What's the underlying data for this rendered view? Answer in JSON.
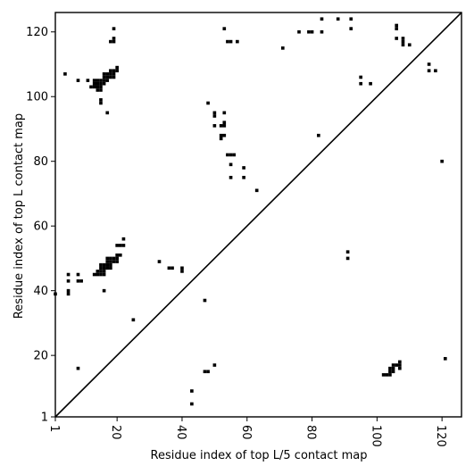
{
  "chart_data": {
    "type": "heatmap",
    "title": "",
    "xlabel": "Residue index of top L/5 contact map",
    "ylabel": "Residue index of top L contact map",
    "xlim": [
      1,
      126
    ],
    "ylim": [
      1,
      126
    ],
    "x_ticks": [
      1,
      20,
      40,
      60,
      80,
      100,
      120
    ],
    "y_ticks": [
      1,
      20,
      40,
      60,
      80,
      100,
      120
    ],
    "x_tick_labels": [
      "1",
      "20",
      "40",
      "60",
      "80",
      "100",
      "120"
    ],
    "y_tick_labels": [
      "1",
      "20",
      "40",
      "60",
      "80",
      "100",
      "120"
    ],
    "x_tick_rotation": 90,
    "diagonal_line": true,
    "cell_color": "#000000",
    "contacts_top_L": [
      [
        1,
        39
      ],
      [
        5,
        40
      ],
      [
        5,
        39
      ],
      [
        5,
        43
      ],
      [
        5,
        45
      ],
      [
        8,
        45
      ],
      [
        8,
        43
      ],
      [
        9,
        43
      ],
      [
        8,
        16
      ],
      [
        13,
        45
      ],
      [
        14,
        45
      ],
      [
        15,
        45
      ],
      [
        16,
        45
      ],
      [
        14,
        46
      ],
      [
        15,
        46
      ],
      [
        16,
        46
      ],
      [
        15,
        47
      ],
      [
        16,
        47
      ],
      [
        15,
        48
      ],
      [
        16,
        48
      ],
      [
        17,
        47
      ],
      [
        18,
        47
      ],
      [
        17,
        48
      ],
      [
        18,
        48
      ],
      [
        17,
        49
      ],
      [
        18,
        49
      ],
      [
        19,
        49
      ],
      [
        20,
        49
      ],
      [
        17,
        50
      ],
      [
        18,
        50
      ],
      [
        19,
        50
      ],
      [
        20,
        50
      ],
      [
        20,
        51
      ],
      [
        21,
        51
      ],
      [
        20,
        54
      ],
      [
        21,
        54
      ],
      [
        22,
        54
      ],
      [
        22,
        56
      ],
      [
        16,
        40
      ],
      [
        25,
        31
      ],
      [
        33,
        49
      ],
      [
        36,
        47
      ],
      [
        37,
        47
      ],
      [
        40,
        46
      ],
      [
        40,
        47
      ],
      [
        47,
        37
      ],
      [
        43,
        9
      ],
      [
        43,
        5
      ],
      [
        47,
        15
      ],
      [
        48,
        15
      ],
      [
        50,
        17
      ],
      [
        91,
        50
      ],
      [
        91,
        52
      ],
      [
        102,
        14
      ],
      [
        103,
        14
      ],
      [
        104,
        14
      ],
      [
        104,
        15
      ],
      [
        105,
        15
      ],
      [
        104,
        16
      ],
      [
        105,
        16
      ],
      [
        105,
        17
      ],
      [
        106,
        17
      ],
      [
        107,
        17
      ],
      [
        107,
        16
      ],
      [
        107,
        18
      ],
      [
        121,
        19
      ]
    ],
    "contacts_top_L5": [
      [
        4,
        107
      ],
      [
        8,
        105
      ],
      [
        11,
        105
      ],
      [
        12,
        103
      ],
      [
        13,
        103
      ],
      [
        14,
        103
      ],
      [
        13,
        104
      ],
      [
        14,
        104
      ],
      [
        15,
        104
      ],
      [
        16,
        104
      ],
      [
        13,
        105
      ],
      [
        14,
        105
      ],
      [
        15,
        105
      ],
      [
        14,
        102
      ],
      [
        15,
        102
      ],
      [
        15,
        103
      ],
      [
        16,
        105
      ],
      [
        17,
        105
      ],
      [
        16,
        106
      ],
      [
        17,
        106
      ],
      [
        18,
        106
      ],
      [
        19,
        106
      ],
      [
        16,
        107
      ],
      [
        17,
        107
      ],
      [
        18,
        107
      ],
      [
        19,
        107
      ],
      [
        18,
        108
      ],
      [
        19,
        108
      ],
      [
        20,
        108
      ],
      [
        20,
        109
      ],
      [
        15,
        98
      ],
      [
        15,
        99
      ],
      [
        17,
        95
      ],
      [
        18,
        117
      ],
      [
        19,
        117
      ],
      [
        19,
        118
      ],
      [
        19,
        121
      ],
      [
        48,
        98
      ],
      [
        50,
        94
      ],
      [
        50,
        95
      ],
      [
        50,
        91
      ],
      [
        52,
        91
      ],
      [
        53,
        91
      ],
      [
        53,
        92
      ],
      [
        53,
        95
      ],
      [
        52,
        87
      ],
      [
        52,
        88
      ],
      [
        53,
        88
      ],
      [
        54,
        82
      ],
      [
        55,
        82
      ],
      [
        56,
        82
      ],
      [
        55,
        79
      ],
      [
        55,
        75
      ],
      [
        59,
        78
      ],
      [
        59,
        75
      ],
      [
        63,
        71
      ],
      [
        53,
        121
      ],
      [
        54,
        117
      ],
      [
        55,
        117
      ],
      [
        57,
        117
      ],
      [
        71,
        115
      ],
      [
        76,
        120
      ],
      [
        79,
        120
      ],
      [
        80,
        120
      ],
      [
        83,
        120
      ],
      [
        83,
        124
      ],
      [
        88,
        124
      ],
      [
        92,
        124
      ],
      [
        92,
        121
      ],
      [
        82,
        88
      ],
      [
        95,
        104
      ],
      [
        95,
        106
      ],
      [
        98,
        104
      ],
      [
        106,
        121
      ],
      [
        106,
        122
      ],
      [
        106,
        118
      ],
      [
        108,
        116
      ],
      [
        108,
        117
      ],
      [
        108,
        118
      ],
      [
        110,
        116
      ],
      [
        116,
        108
      ],
      [
        116,
        110
      ],
      [
        118,
        108
      ],
      [
        120,
        80
      ]
    ]
  }
}
